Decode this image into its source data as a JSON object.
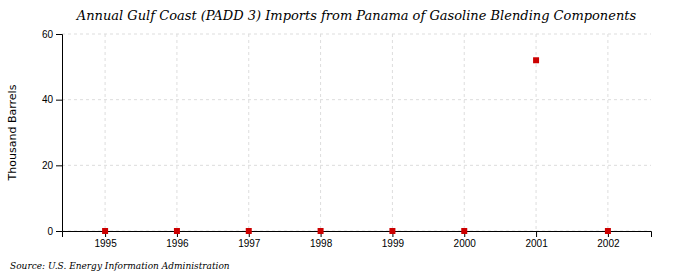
{
  "chart_data": {
    "type": "scatter",
    "title": "Annual Gulf Coast (PADD 3) Imports from Panama of Gasoline Blending Components",
    "y_label": "Thousand Barrels",
    "source": "Source: U.S. Energy Information Administration",
    "x": [
      1995,
      1996,
      1997,
      1998,
      1999,
      2000,
      2001,
      2002
    ],
    "values": [
      0,
      0,
      0,
      0,
      0,
      0,
      52,
      0
    ],
    "color": "#cc0000",
    "marker": "square",
    "xlim": [
      1994.4,
      2002.6
    ],
    "ylim": [
      0,
      60
    ],
    "xticks": [
      1995,
      1996,
      1997,
      1998,
      1999,
      2000,
      2001,
      2002
    ],
    "yticks": [
      0,
      20,
      40,
      60
    ],
    "grid": true
  }
}
